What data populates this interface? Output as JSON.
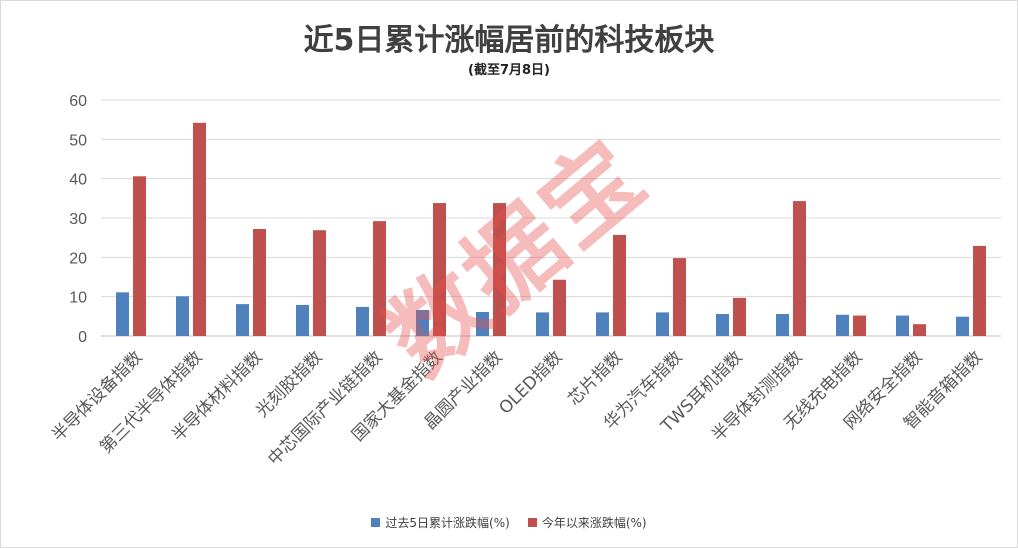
{
  "chart_data": {
    "type": "bar",
    "title": "近5日累计涨幅居前的科技板块",
    "subtitle": "(截至7月8日)",
    "categories": [
      "半导体设备指数",
      "第三代半导体指数",
      "半导体材料指数",
      "光刻胶指数",
      "中芯国际产业链指数",
      "国家大基金指数",
      "晶圆产业指数",
      "OLED指数",
      "芯片指数",
      "华为汽车指数",
      "TWS耳机指数",
      "半导体封测指数",
      "无线充电指数",
      "网络安全指数",
      "智能音箱指数"
    ],
    "series": [
      {
        "name": "过去5日累计涨跌幅(%)",
        "color": "#4f81bd",
        "values": [
          11.1,
          10.1,
          8.1,
          7.9,
          7.4,
          6.6,
          6.1,
          6.0,
          6.0,
          6.0,
          5.6,
          5.6,
          5.4,
          5.2,
          4.9
        ]
      },
      {
        "name": "今年以来涨跌幅(%)",
        "color": "#c0504d",
        "values": [
          40.6,
          54.2,
          27.2,
          26.9,
          29.2,
          33.8,
          33.8,
          14.3,
          25.7,
          19.8,
          9.7,
          34.3,
          5.2,
          3.0,
          22.9
        ]
      }
    ],
    "ylim": [
      0,
      60
    ],
    "yticks": [
      0,
      10,
      20,
      30,
      40,
      50,
      60
    ],
    "grid": true,
    "legend": "bottom"
  },
  "watermark": "数据宝"
}
